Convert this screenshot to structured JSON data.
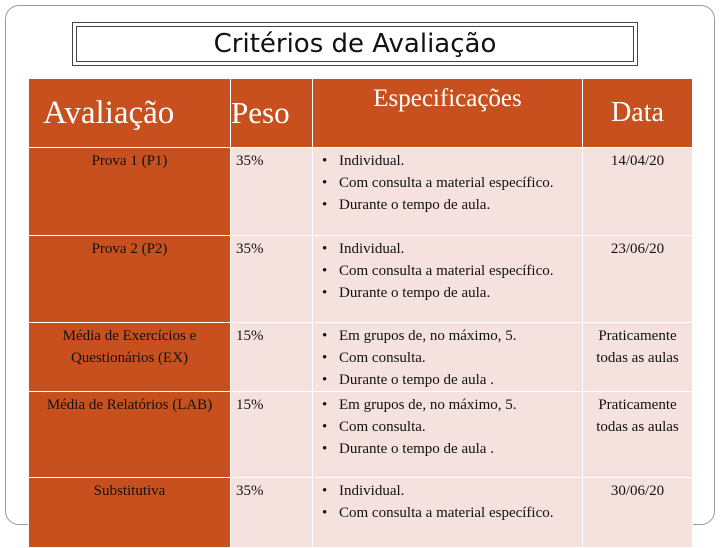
{
  "title": "Critérios de Avaliação",
  "table": {
    "headers": [
      "Avaliação",
      "Peso",
      "Especificações",
      "Data"
    ],
    "rows": [
      {
        "name": "Prova 1 (P1)",
        "weight": "35%",
        "specs": [
          "Individual.",
          "Com consulta a material específico.",
          "Durante o tempo de aula."
        ],
        "date": "14/04/20"
      },
      {
        "name": "Prova 2 (P2)",
        "weight": "35%",
        "specs": [
          "Individual.",
          "Com consulta a material específico.",
          "Durante o tempo de aula."
        ],
        "date": "23/06/20"
      },
      {
        "name": "Média de Exercícios e Questionários (EX)",
        "weight": "15%",
        "specs": [
          "Em grupos de, no máximo, 5.",
          "Com consulta.",
          "Durante o tempo de aula ."
        ],
        "date": "Praticamente todas as aulas"
      },
      {
        "name": "Média de Relatórios (LAB)",
        "weight": "15%",
        "specs": [
          "Em grupos de, no máximo, 5.",
          "Com consulta.",
          "Durante o tempo de aula ."
        ],
        "date": "Praticamente todas as aulas"
      },
      {
        "name": "Substitutiva",
        "weight": "35%",
        "specs": [
          "Individual.",
          "Com consulta a material específico."
        ],
        "date": "30/06/20"
      }
    ]
  },
  "colors": {
    "header_bg": "#c8501f",
    "cell_bg": "#f5e2df"
  }
}
